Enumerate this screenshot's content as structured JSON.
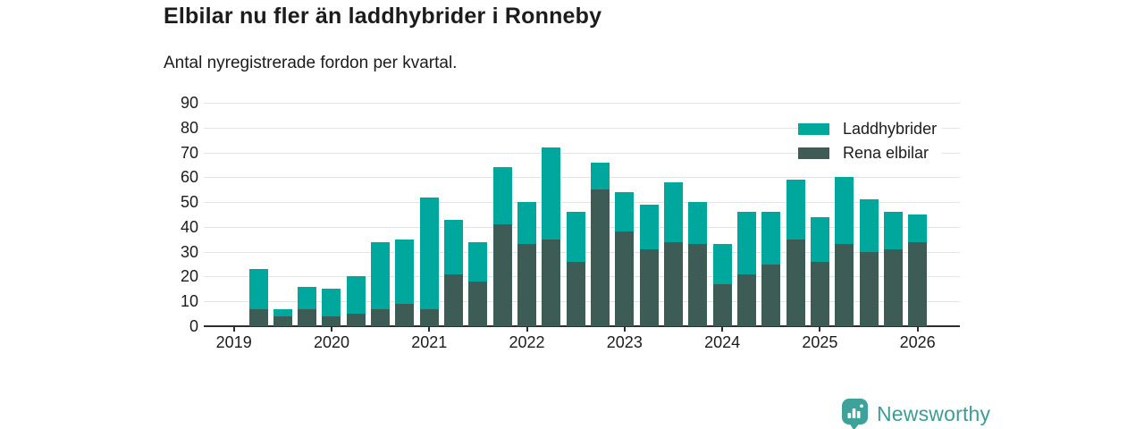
{
  "title": "Elbilar nu fler än laddhybrider i Ronneby",
  "subtitle": "Antal nyregistrerade fordon per kvartal.",
  "legend": [
    {
      "label": "Laddhybrider",
      "color": "#00a79c"
    },
    {
      "label": "Rena elbilar",
      "color": "#3d5c55"
    }
  ],
  "colors": {
    "laddhybrider": "#00a79c",
    "rena_elbilar": "#3d5c55",
    "gridline": "#e4e4e4",
    "axis": "#2e2e2e",
    "text": "#1c1c1c",
    "brand_teal": "#3fa29a"
  },
  "chart_data": {
    "type": "bar",
    "stacked": true,
    "title": "Elbilar nu fler än laddhybrider i Ronneby",
    "subtitle": "Antal nyregistrerade fordon per kvartal.",
    "categories": [
      "2019 Q2",
      "2019 Q3",
      "2019 Q4",
      "2020 Q1",
      "2020 Q2",
      "2020 Q3",
      "2020 Q4",
      "2021 Q1",
      "2021 Q2",
      "2021 Q3",
      "2021 Q4",
      "2022 Q1",
      "2022 Q2",
      "2022 Q3",
      "2022 Q4",
      "2023 Q1",
      "2023 Q2",
      "2023 Q3",
      "2023 Q4",
      "2024 Q1",
      "2024 Q2",
      "2024 Q3",
      "2024 Q4",
      "2025 Q1",
      "2025 Q2",
      "2025 Q3",
      "2025 Q4",
      "2026 Q1"
    ],
    "series": [
      {
        "name": "Rena elbilar",
        "color": "#3d5c55",
        "stack_order": "bottom",
        "values": [
          7,
          4,
          7,
          4,
          5,
          7,
          9,
          7,
          21,
          18,
          41,
          33,
          35,
          26,
          55,
          38,
          31,
          34,
          33,
          17,
          21,
          25,
          35,
          26,
          33,
          30,
          31,
          34
        ]
      },
      {
        "name": "Laddhybrider",
        "color": "#00a79c",
        "stack_order": "top",
        "values": [
          16,
          3,
          9,
          11,
          15,
          27,
          26,
          45,
          22,
          16,
          23,
          17,
          37,
          20,
          11,
          16,
          18,
          24,
          17,
          16,
          25,
          21,
          24,
          18,
          27,
          21,
          15,
          11
        ]
      }
    ],
    "totals": [
      23,
      7,
      16,
      15,
      20,
      34,
      35,
      52,
      43,
      34,
      64,
      50,
      72,
      46,
      66,
      54,
      49,
      58,
      50,
      33,
      46,
      46,
      59,
      44,
      60,
      51,
      46,
      45
    ],
    "x_tick_labels": [
      "2019",
      "2020",
      "2021",
      "2022",
      "2023",
      "2024",
      "2025",
      "2026"
    ],
    "y_ticks": [
      0,
      10,
      20,
      30,
      40,
      50,
      60,
      70,
      80,
      90
    ],
    "ylim": [
      0,
      90
    ],
    "grid": "horizontal",
    "legend_position": "top-right",
    "note": "first plotted quarter is 2019 Q2; year ticks mark Q1 of each year"
  },
  "branding": {
    "logo_text": "Newsworthy",
    "logo_icon": "bar-chart-map-pin-icon"
  }
}
